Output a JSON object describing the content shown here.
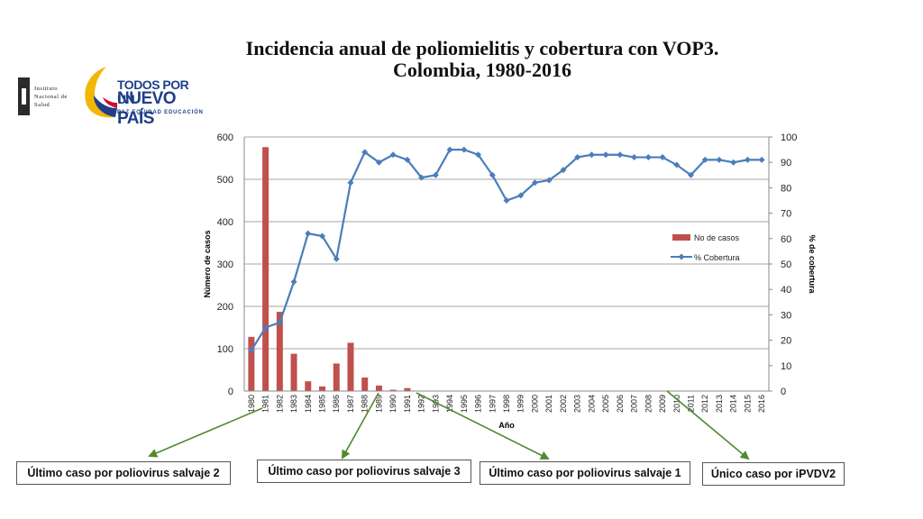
{
  "slide": {
    "title_line1": "Incidencia anual de poliomielitis y cobertura con VOP3.",
    "title_line2": "Colombia, 1980-2016",
    "logo_institute": [
      "Instituto",
      "Nacional de",
      "Salud"
    ],
    "logo_gov_line1": "TODOS POR UN",
    "logo_gov_line2": "NUEVO PAÍS",
    "logo_gov_line3": "PAZ  EQUIDAD  EDUCACIÓN"
  },
  "callouts": [
    {
      "label": "Último caso por poliovirus salvaje 2"
    },
    {
      "label": "Último caso por poliovirus salvaje 3"
    },
    {
      "label": "Último caso por poliovirus salvaje 1"
    },
    {
      "label": "Único caso por iPVDV2"
    }
  ],
  "colors": {
    "bars": "#c0504d",
    "line": "#4a7ebb",
    "arrows": "#4f8a2c"
  },
  "chart_data": {
    "type": "bar+line",
    "xlabel": "Año",
    "ylabel": "Número de casos",
    "y2label": "% de cobertura",
    "ylim": [
      0,
      600
    ],
    "y2lim": [
      0,
      100
    ],
    "yticks": [
      0,
      100,
      200,
      300,
      400,
      500,
      600
    ],
    "y2ticks": [
      0,
      10,
      20,
      30,
      40,
      50,
      60,
      70,
      80,
      90,
      100
    ],
    "grid": true,
    "legend_position": "right",
    "categories": [
      "1980",
      "1981",
      "1982",
      "1983",
      "1984",
      "1985",
      "1986",
      "1987",
      "1988",
      "1989",
      "1990",
      "1991",
      "1992",
      "1993",
      "1994",
      "1995",
      "1996",
      "1997",
      "1998",
      "1999",
      "2000",
      "2001",
      "2002",
      "2003",
      "2004",
      "2005",
      "2006",
      "2007",
      "2008",
      "2009",
      "2010",
      "2011",
      "2012",
      "2013",
      "2014",
      "2015",
      "2016"
    ],
    "series": [
      {
        "name": "No de casos",
        "type": "bar",
        "axis": "left",
        "values": [
          128,
          576,
          187,
          88,
          23,
          11,
          65,
          114,
          32,
          13,
          3,
          7,
          0,
          0,
          0,
          0,
          0,
          0,
          0,
          0,
          0,
          0,
          0,
          0,
          0,
          0,
          0,
          0,
          0,
          0,
          0,
          0,
          0,
          0,
          0,
          0,
          0
        ]
      },
      {
        "name": "% Cobertura",
        "type": "line",
        "axis": "right",
        "values": [
          16,
          25,
          27,
          43,
          62,
          61,
          52,
          82,
          94,
          90,
          93,
          91,
          84,
          85,
          95,
          95,
          93,
          85,
          75,
          77,
          82,
          83,
          87,
          92,
          93,
          93,
          93,
          92,
          92,
          92,
          89,
          85,
          91,
          91,
          90,
          91,
          91
        ]
      }
    ]
  }
}
